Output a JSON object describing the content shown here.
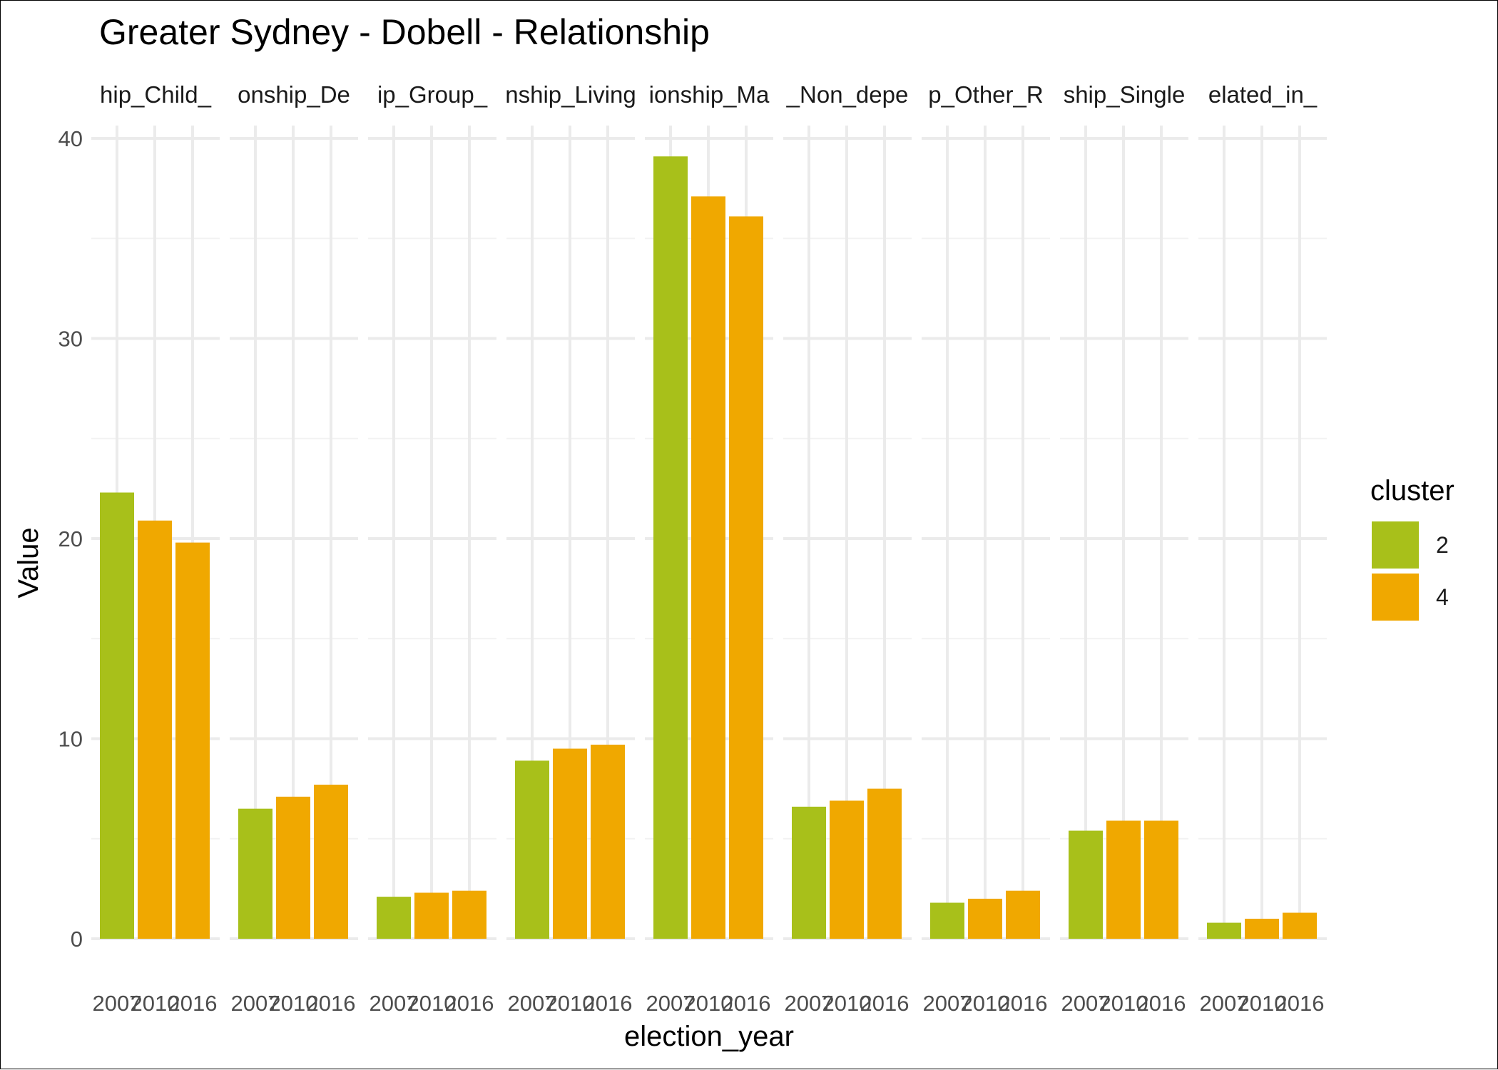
{
  "chart_data": {
    "type": "bar",
    "title": "Greater Sydney - Dobell - Relationship",
    "xlabel": "election_year",
    "ylabel": "Value",
    "ylim": [
      0,
      41
    ],
    "y_ticks": [
      0,
      10,
      20,
      30,
      40
    ],
    "x_categories": [
      "2007",
      "2010",
      "2016"
    ],
    "grid": true,
    "legend": {
      "title": "cluster",
      "position": "right",
      "items": [
        {
          "label": "2",
          "color": "#A8C01A"
        },
        {
          "label": "4",
          "color": "#F0A800"
        }
      ]
    },
    "facets": [
      {
        "label": "hip_Child_",
        "values": [
          22.3,
          20.9,
          19.8
        ],
        "clusters": [
          "2",
          "4",
          "4"
        ]
      },
      {
        "label": "onship_De",
        "values": [
          6.5,
          7.1,
          7.7
        ],
        "clusters": [
          "2",
          "4",
          "4"
        ]
      },
      {
        "label": "ip_Group_",
        "values": [
          2.1,
          2.3,
          2.4
        ],
        "clusters": [
          "2",
          "4",
          "4"
        ]
      },
      {
        "label": "nship_Living",
        "values": [
          8.9,
          9.5,
          9.7
        ],
        "clusters": [
          "2",
          "4",
          "4"
        ]
      },
      {
        "label": "ionship_Ma",
        "values": [
          39.1,
          37.1,
          36.1
        ],
        "clusters": [
          "2",
          "4",
          "4"
        ]
      },
      {
        "label": "_Non_depe",
        "values": [
          6.6,
          6.9,
          7.5
        ],
        "clusters": [
          "2",
          "4",
          "4"
        ]
      },
      {
        "label": "p_Other_R",
        "values": [
          1.8,
          2.0,
          2.4
        ],
        "clusters": [
          "2",
          "4",
          "4"
        ]
      },
      {
        "label": "ship_Single",
        "values": [
          5.4,
          5.9,
          5.9
        ],
        "clusters": [
          "2",
          "4",
          "4"
        ]
      },
      {
        "label": "elated_in_",
        "values": [
          0.8,
          1.0,
          1.3
        ],
        "clusters": [
          "2",
          "4",
          "4"
        ]
      }
    ]
  }
}
